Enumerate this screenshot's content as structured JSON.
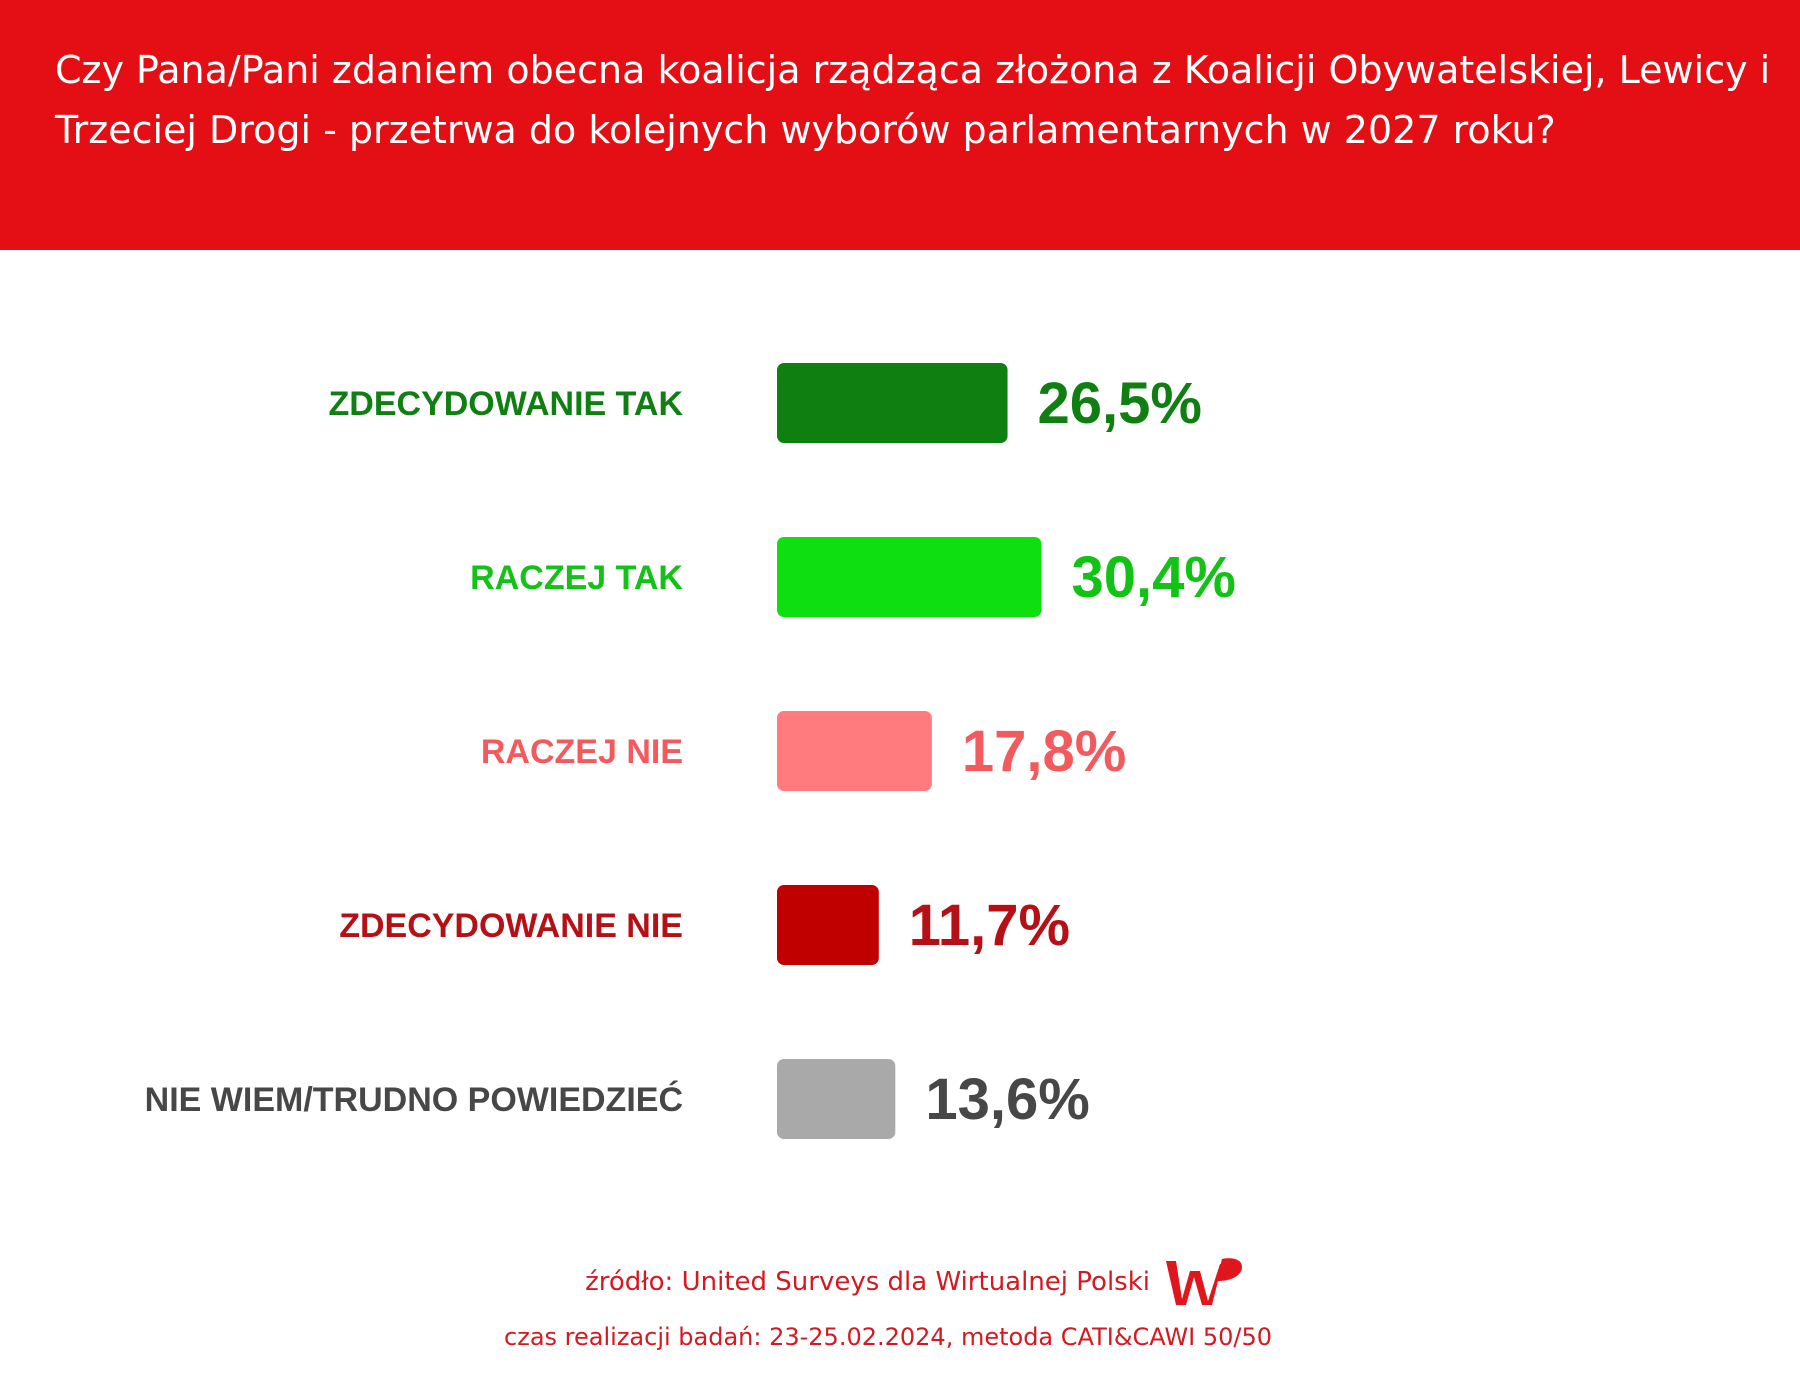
{
  "header": {
    "title": "Czy Pana/Pani zdaniem obecna koalicja rządząca złożona z Koalicji Obywatelskiej, Lewicy i Trzeciej Drogi - przetrwa do kolejnych wyborów parlamentarnych w 2027 roku?"
  },
  "chart_data": {
    "type": "bar",
    "orientation": "horizontal",
    "title": "Czy Pana/Pani zdaniem obecna koalicja rządząca złożona z Koalicji Obywatelskiej, Lewicy i Trzeciej Drogi - przetrwa do kolejnych wyborów parlamentarnych w 2027 roku?",
    "categories": [
      "ZDECYDOWANIE TAK",
      "RACZEJ TAK",
      "RACZEJ NIE",
      "ZDECYDOWANIE NIE",
      "NIE WIEM/TRUDNO POWIEDZIEĆ"
    ],
    "values": [
      26.5,
      30.4,
      17.8,
      11.7,
      13.6
    ],
    "value_labels": [
      "26,5%",
      "30,4%",
      "17,8%",
      "11,7%",
      "13,6%"
    ],
    "bar_colors": [
      "#0f7f12",
      "#0ddf10",
      "#ff7b7e",
      "#c00000",
      "#a9a9a9"
    ],
    "label_colors": [
      "#0f7f12",
      "#12c214",
      "#f25a5e",
      "#b51015",
      "#474747"
    ],
    "xlabel": "",
    "ylabel": "",
    "grid": false,
    "legend": "none"
  },
  "footer": {
    "source": "źródło: United Surveys dla Wirtualnej Polski",
    "details": "czas realizacji badań: 23-25.02.2024, metoda CATI&CAWI 50/50",
    "logo_icon": "wp-logo-icon",
    "logo_color": "#e0161d"
  }
}
